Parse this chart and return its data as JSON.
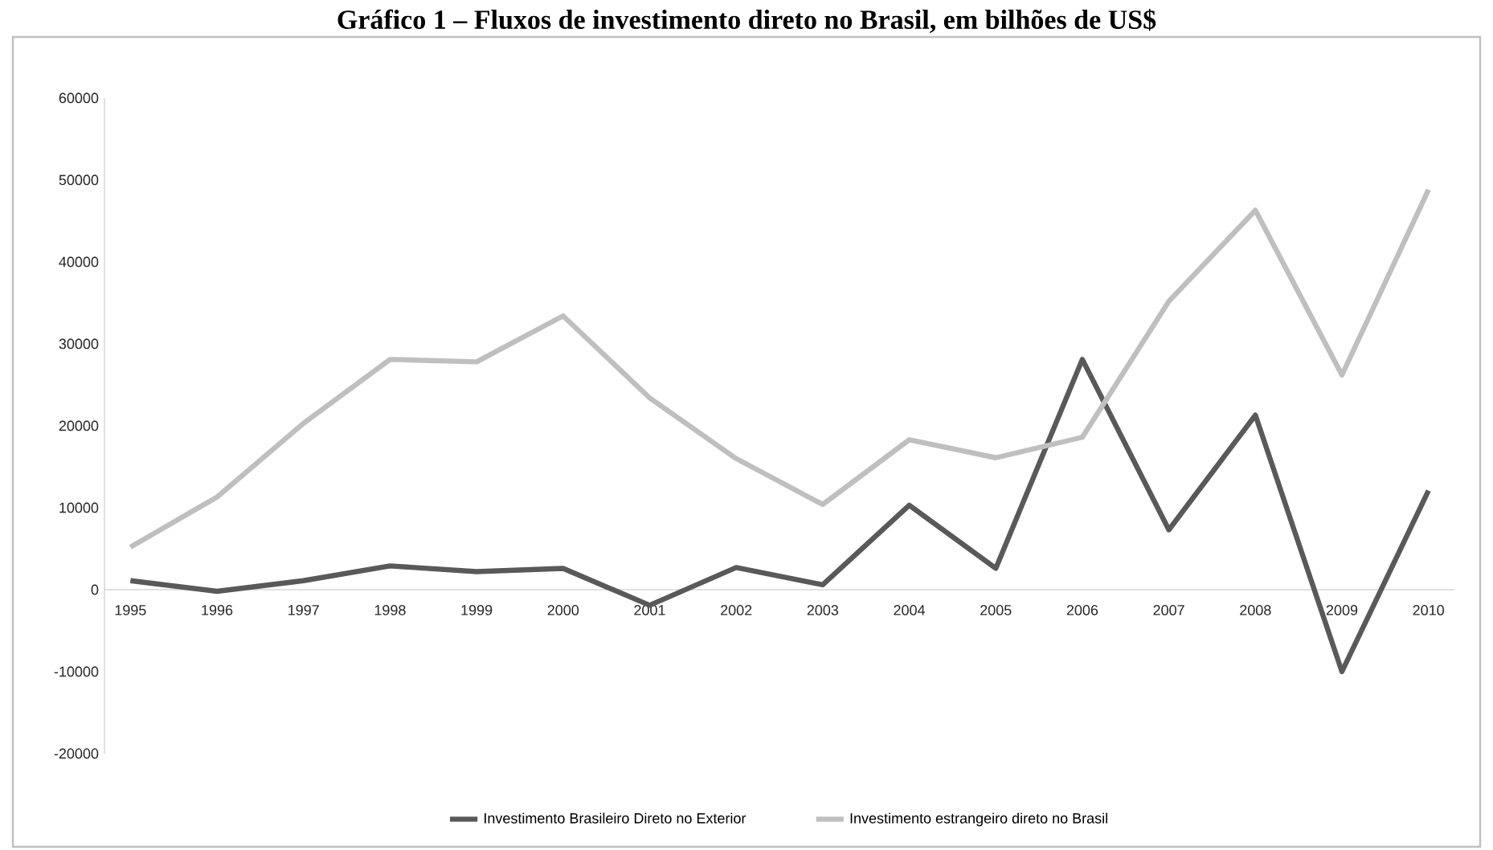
{
  "chart_data": {
    "type": "line",
    "title": "Gráfico 1 – Fluxos de investimento direto no Brasil, em bilhões de US$",
    "categories": [
      "1995",
      "1996",
      "1997",
      "1998",
      "1999",
      "2000",
      "2001",
      "2002",
      "2003",
      "2004",
      "2005",
      "2006",
      "2007",
      "2008",
      "2009",
      "2010"
    ],
    "series": [
      {
        "name": "Investimento Brasileiro Direto no Exterior",
        "color": "#595959",
        "values": [
          1100,
          -200,
          1100,
          2900,
          2200,
          2600,
          -1900,
          2700,
          600,
          10300,
          2600,
          28100,
          7300,
          21300,
          -10000,
          12100
        ]
      },
      {
        "name": "Investimento estrangeiro direto no Brasil",
        "color": "#bfbfbf",
        "values": [
          5200,
          11300,
          20300,
          28100,
          27800,
          33400,
          23400,
          16000,
          10400,
          18300,
          16100,
          18600,
          35200,
          46300,
          26200,
          48800
        ]
      }
    ],
    "ylim": [
      -20000,
      60000
    ],
    "yticks": [
      -20000,
      -10000,
      0,
      10000,
      20000,
      30000,
      40000,
      50000,
      60000
    ],
    "grid": false,
    "legend": "bottom",
    "marker": "none",
    "line_style": "solid"
  }
}
